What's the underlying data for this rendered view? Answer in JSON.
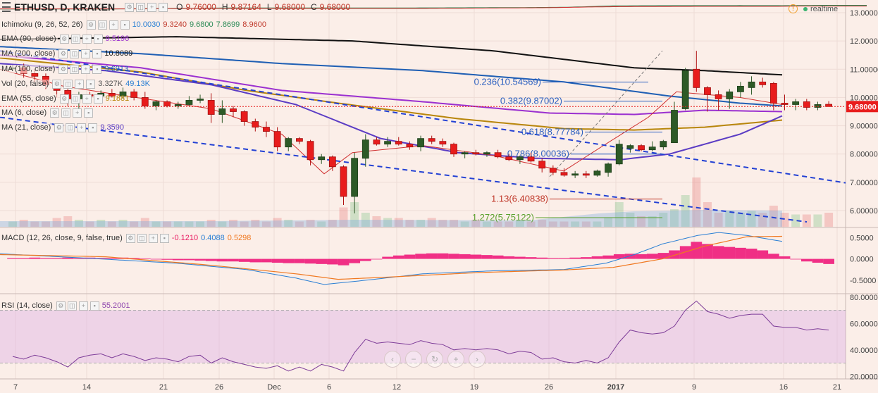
{
  "header": {
    "symbol": "ETHUSD, D, KRAKEN",
    "o_label": "O",
    "o": "9.76000",
    "h_label": "H",
    "h": "9.87164",
    "l_label": "L",
    "l": "9.68000",
    "c_label": "C",
    "c": "9.68000",
    "realtime": "realtime"
  },
  "indicators": [
    {
      "name": "Ichimoku (9, 26, 52, 26)",
      "values": [
        {
          "v": "10.0030",
          "color": "#2a7fd4"
        },
        {
          "v": "9.3240",
          "color": "#c0392b"
        },
        {
          "v": "9.6800",
          "color": "#2e8b57"
        },
        {
          "v": "7.8699",
          "color": "#2e8b57"
        },
        {
          "v": "8.9600",
          "color": "#c0392b"
        }
      ]
    },
    {
      "name": "EMA (90, close)",
      "values": [
        {
          "v": "9.5196",
          "color": "#9b30d0"
        }
      ]
    },
    {
      "name": "MA (200, close)",
      "values": [
        {
          "v": "10.8089",
          "color": "#111111"
        }
      ]
    },
    {
      "name": "MA (100, close)",
      "values": [
        {
          "v": "9.6913",
          "color": "#1f5fb4"
        }
      ]
    },
    {
      "name": "Vol (20, false)",
      "values": [
        {
          "v": "3.327K",
          "color": "#555555"
        },
        {
          "v": "49.13K",
          "color": "#2a7fd4"
        }
      ]
    },
    {
      "name": "EMA (55, close)",
      "values": [
        {
          "v": "9.1881",
          "color": "#b8860b"
        }
      ]
    },
    {
      "name": "MA (6, close)",
      "values": []
    },
    {
      "name": "MA (21, close)",
      "values": [
        {
          "v": "9.3590",
          "color": "#5b3cc4"
        }
      ]
    }
  ],
  "macd": {
    "name": "MACD (12, 26, close, 9, false, true)",
    "values": [
      {
        "v": "-0.1210",
        "color": "#e91e63"
      },
      {
        "v": "0.4088",
        "color": "#2a7fd4"
      },
      {
        "v": "0.5298",
        "color": "#f07820"
      }
    ]
  },
  "rsi": {
    "name": "RSI (14, close)",
    "values": [
      {
        "v": "55.2001",
        "color": "#8e44ad"
      }
    ]
  },
  "chart_data": {
    "type": "candlestick",
    "symbol": "ETHUSD",
    "interval": "D",
    "exchange": "KRAKEN",
    "price_axis": {
      "ticks": [
        "13.00000",
        "12.00000",
        "11.00000",
        "10.00000",
        "9.00000",
        "8.00000",
        "7.00000",
        "6.00000"
      ],
      "ylim": [
        5.5,
        13.0
      ]
    },
    "last_price": "9.68000",
    "x_ticks": [
      "7",
      "14",
      "21",
      "26",
      "Dec",
      "6",
      "12",
      "19",
      "26",
      "2017",
      "9",
      "16",
      "21"
    ],
    "candles": [
      [
        11.05,
        11.15,
        10.95,
        11.05
      ],
      [
        11.05,
        11.2,
        10.7,
        10.85
      ],
      [
        10.85,
        11.0,
        10.55,
        10.75
      ],
      [
        10.75,
        10.85,
        10.3,
        10.45
      ],
      [
        10.45,
        10.5,
        10.0,
        10.25
      ],
      [
        10.25,
        10.4,
        9.7,
        9.95
      ],
      [
        9.95,
        10.2,
        9.6,
        10.1
      ],
      [
        10.1,
        10.2,
        9.95,
        10.05
      ],
      [
        10.05,
        10.25,
        9.95,
        10.15
      ],
      [
        10.15,
        10.3,
        10.0,
        10.05
      ],
      [
        10.05,
        10.35,
        9.95,
        10.2
      ],
      [
        10.2,
        10.3,
        9.9,
        10.0
      ],
      [
        10.0,
        10.2,
        9.6,
        9.7
      ],
      [
        9.7,
        9.9,
        9.55,
        9.85
      ],
      [
        9.85,
        9.9,
        9.65,
        9.7
      ],
      [
        9.7,
        9.85,
        9.6,
        9.75
      ],
      [
        9.75,
        10.05,
        9.7,
        9.9
      ],
      [
        9.9,
        10.1,
        9.8,
        9.95
      ],
      [
        9.9,
        10.15,
        9.1,
        9.4
      ],
      [
        9.4,
        9.9,
        9.1,
        9.6
      ],
      [
        9.6,
        9.7,
        9.3,
        9.5
      ],
      [
        9.5,
        9.55,
        9.0,
        9.15
      ],
      [
        9.15,
        9.25,
        8.8,
        8.95
      ],
      [
        8.95,
        9.15,
        8.6,
        8.8
      ],
      [
        8.8,
        8.95,
        8.1,
        8.25
      ],
      [
        8.25,
        8.6,
        8.1,
        8.55
      ],
      [
        8.55,
        8.6,
        8.35,
        8.45
      ],
      [
        8.45,
        8.5,
        7.6,
        7.8
      ],
      [
        7.8,
        8.0,
        7.65,
        7.9
      ],
      [
        7.9,
        7.95,
        7.4,
        7.55
      ],
      [
        7.55,
        7.6,
        6.2,
        6.5
      ],
      [
        6.5,
        8.05,
        5.9,
        7.85
      ],
      [
        7.85,
        8.7,
        7.55,
        8.5
      ],
      [
        8.5,
        8.6,
        8.3,
        8.35
      ],
      [
        8.35,
        8.6,
        8.25,
        8.45
      ],
      [
        8.45,
        8.6,
        8.3,
        8.35
      ],
      [
        8.35,
        8.45,
        8.15,
        8.25
      ],
      [
        8.25,
        8.65,
        8.1,
        8.55
      ],
      [
        8.55,
        8.65,
        8.35,
        8.45
      ],
      [
        8.45,
        8.55,
        8.25,
        8.35
      ],
      [
        8.35,
        8.4,
        7.9,
        8.0
      ],
      [
        8.0,
        8.1,
        7.85,
        8.05
      ],
      [
        8.05,
        8.15,
        7.95,
        8.0
      ],
      [
        8.0,
        8.1,
        7.9,
        8.05
      ],
      [
        8.05,
        8.15,
        7.85,
        7.9
      ],
      [
        7.9,
        8.0,
        7.75,
        7.8
      ],
      [
        7.8,
        7.95,
        7.65,
        7.9
      ],
      [
        7.9,
        8.05,
        7.7,
        7.75
      ],
      [
        7.75,
        7.85,
        7.35,
        7.5
      ],
      [
        7.5,
        7.6,
        7.25,
        7.35
      ],
      [
        7.35,
        7.5,
        7.2,
        7.25
      ],
      [
        7.25,
        7.4,
        7.15,
        7.3
      ],
      [
        7.3,
        7.4,
        7.15,
        7.25
      ],
      [
        7.25,
        7.45,
        7.2,
        7.4
      ],
      [
        7.35,
        7.7,
        7.2,
        7.65
      ],
      [
        7.65,
        8.5,
        7.6,
        8.35
      ],
      [
        8.2,
        8.35,
        8.05,
        8.3
      ],
      [
        8.3,
        8.35,
        8.1,
        8.15
      ],
      [
        8.15,
        8.45,
        8.1,
        8.25
      ],
      [
        8.25,
        8.5,
        8.15,
        8.45
      ],
      [
        8.4,
        9.85,
        8.4,
        9.55
      ],
      [
        9.6,
        11.05,
        9.55,
        10.95
      ],
      [
        11.0,
        11.65,
        10.2,
        10.35
      ],
      [
        10.35,
        10.4,
        9.5,
        10.1
      ],
      [
        10.1,
        10.25,
        9.55,
        9.95
      ],
      [
        9.95,
        10.3,
        9.6,
        10.2
      ],
      [
        10.2,
        10.55,
        10.0,
        10.4
      ],
      [
        10.35,
        10.75,
        10.1,
        10.55
      ],
      [
        10.55,
        10.7,
        10.35,
        10.45
      ],
      [
        10.5,
        10.55,
        9.55,
        9.8
      ],
      [
        9.8,
        10.1,
        9.55,
        9.75
      ],
      [
        9.75,
        9.95,
        9.55,
        9.85
      ],
      [
        9.85,
        9.95,
        9.55,
        9.65
      ],
      [
        9.65,
        9.85,
        9.55,
        9.75
      ],
      [
        9.76,
        9.87164,
        9.68,
        9.68
      ]
    ],
    "fibonacci": [
      {
        "label": "0.236(10.54569)",
        "level": 10.54569
      },
      {
        "label": "0.382(9.87002)",
        "level": 9.87002
      },
      {
        "label": "0.618(8.77784)",
        "level": 8.77784
      },
      {
        "label": "0.786(8.00036)",
        "level": 8.00036
      },
      {
        "label": "1.13(6.40838)",
        "level": 6.40838
      },
      {
        "label": "1.272(5.75122)",
        "level": 5.75122
      }
    ],
    "macd_axis": {
      "ticks": [
        "0.5000",
        "0.0000",
        "-0.5000"
      ],
      "ylim": [
        -0.8,
        0.72
      ]
    },
    "rsi_axis": {
      "ticks": [
        "80.0000",
        "60.0000",
        "40.0000",
        "20.0000"
      ],
      "ylim": [
        18,
        82
      ],
      "bands": [
        30,
        70
      ]
    },
    "legend_placement": "top-left"
  }
}
